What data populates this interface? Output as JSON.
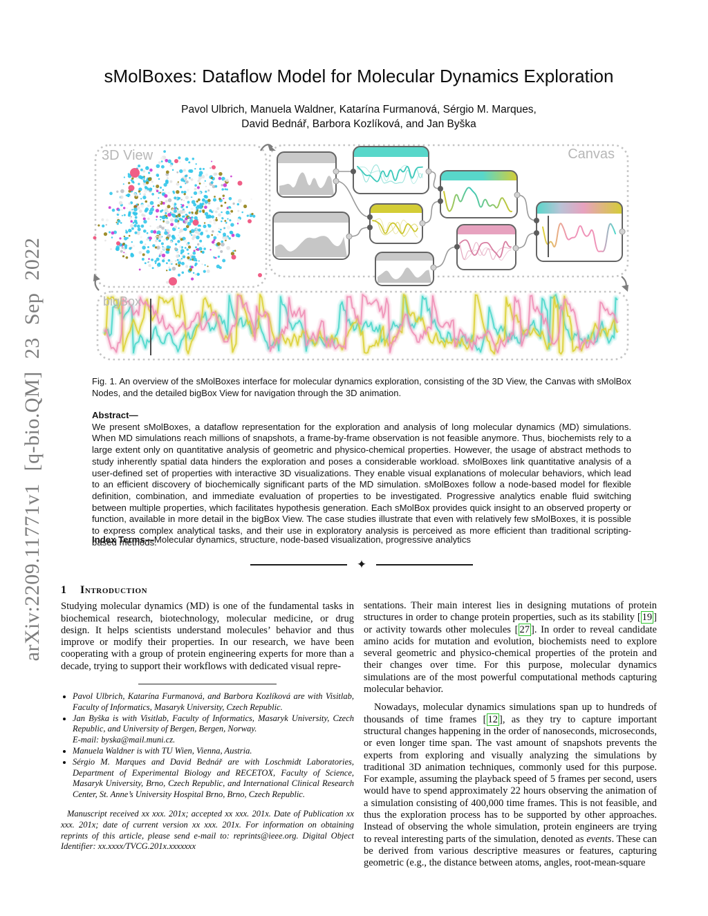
{
  "arxiv": {
    "text": "arXiv:2209.11771v1 [q-bio.QM] 23 Sep 2022"
  },
  "title": "sMolBoxes: Dataflow Model for Molecular Dynamics Exploration",
  "authors": {
    "line1": "Pavol Ulbrich, Manuela Waldner, Katarína Furmanová, Sérgio M. Marques,",
    "line2": "David Bednář, Barbora Kozlíková, and Jan Byška"
  },
  "figure": {
    "labels": {
      "view3d": "3D View",
      "canvas": "Canvas",
      "bigbox": "bigBox"
    },
    "colors": {
      "teal": "#58d7ca",
      "yellow": "#d4cd36",
      "pink": "#e7a2bf",
      "line_teal": "#3cc9bb",
      "line_yellow": "#cdc62e",
      "line_pink": "#d87fa2",
      "big_yellow": "#ddd23b",
      "big_pink": "#ef93b8",
      "big_cyan": "#4fd8cb",
      "gray_header": "#c9c9c9",
      "mountain": "#c6c6c6",
      "node_border": "#646464",
      "dash": "#c4c4c4",
      "edge": "#9a9a9a",
      "port_in": "#5c5c5c",
      "port_out": "#d2d2d2",
      "mol_cyan": "#2fc5e9",
      "mol_olive": "#917e10",
      "mol_magenta": "#c733cf",
      "mol_white": "#e4e4e4",
      "mol_gray": "#b9bec4",
      "crimson": "#ee4d79",
      "arrow": "#7d7d7d"
    }
  },
  "caption": "Fig. 1.  An overview of the sMolBoxes interface for molecular dynamics exploration, consisting of the 3D View, the Canvas with sMolBox Nodes, and the detailed bigBox View for navigation through the 3D animation.",
  "abstract": {
    "label": "Abstract—",
    "text": "We present sMolBoxes, a dataflow representation for the exploration and analysis of long molecular dynamics (MD) simulations. When MD simulations reach millions of snapshots, a frame-by-frame observation is not feasible anymore. Thus, biochemists rely to a large extent only on quantitative analysis of geometric and physico-chemical properties. However, the usage of abstract methods to study inherently spatial data hinders the exploration and poses a considerable workload. sMolBoxes link quantitative analysis of a user-defined set of properties with interactive 3D visualizations. They enable visual explanations of molecular behaviors, which lead to an efficient discovery of biochemically significant parts of the MD simulation. sMolBoxes follow a node-based model for flexible definition, combination, and immediate evaluation of properties to be investigated. Progressive analytics enable fluid switching between multiple properties, which facilitates hypothesis generation. Each sMolBox provides quick insight to an observed property or function, available in more detail in the bigBox View. The case studies illustrate that even with relatively few sMolBoxes, it is possible to express complex analytical tasks, and their use in exploratory analysis is perceived as more efficient than traditional scripting-based methods."
  },
  "index_terms": {
    "label": "Index Terms—",
    "text": "Molecular dynamics, structure, node-based visualization, progressive analytics"
  },
  "divider": {
    "symbol": "✦"
  },
  "intro": {
    "number": "1",
    "title": "Introduction",
    "left_paragraph": "Studying molecular dynamics (MD) is one of the fundamental tasks in biochemical research, biotechnology, molecular medicine, or drug design. It helps scientists understand molecules’ behavior and thus improve or modify their properties. In our research, we have been cooperating with a group of protein engineering experts for more than a decade, trying to support their workflows with dedicated visual repre-"
  },
  "footnotes": [
    {
      "text": "Pavol Ulbrich, Katarína Furmanová, and Barbora Kozlíková are with Visitlab, Faculty of Informatics, Masaryk University, Czech Republic.",
      "email": ""
    },
    {
      "text": "Jan Byška is with Visitlab, Faculty of Informatics, Masaryk University, Czech Republic, and University of Bergen, Bergen, Norway.",
      "email": "E-mail: byska@mail.muni.cz."
    },
    {
      "text": "Manuela Waldner is with TU Wien, Vienna, Austria.",
      "email": ""
    },
    {
      "text": "Sérgio M. Marques and David Bednář are with Loschmidt Laboratories, Department of Experimental Biology and RECETOX, Faculty of Science, Masaryk University, Brno, Czech Republic, and International Clinical Research Center, St. Anne’s University Hospital Brno, Brno, Czech Republic.",
      "email": ""
    }
  ],
  "manuscript": "Manuscript received xx xxx. 201x; accepted xx xxx. 201x. Date of Publication xx xxx. 201x; date of current version xx xxx. 201x. For information on obtaining reprints of this article, please send e-mail to: reprints@ieee.org. Digital Object Identifier: xx.xxxx/TVCG.201x.xxxxxxx",
  "right": {
    "p1": [
      {
        "t": "sentations. Their main interest lies in designing mutations of protein structures in order to change protein properties, such as its stability ["
      },
      {
        "t": "19",
        "cite": true
      },
      {
        "t": "] or activity towards other molecules ["
      },
      {
        "t": "27",
        "cite": true
      },
      {
        "t": "]. In order to reveal candidate amino acids for mutation and evolution, biochemists need to explore several geometric and physico-chemical properties of the protein and their changes over time. For this purpose, molecular dynamics simulations are of the most powerful computational methods capturing molecular behavior."
      }
    ],
    "p2": [
      {
        "t": "Nowadays, molecular dynamics simulations span up to hundreds of thousands of time frames ["
      },
      {
        "t": "12",
        "cite": true
      },
      {
        "t": "], as they try to capture important structural changes happening in the order of nanoseconds, microseconds, or even longer time span. The vast amount of snapshots prevents the experts from exploring and visually analyzing the simulations by traditional 3D animation techniques, commonly used for this purpose. For example, assuming the playback speed of 5 frames per second, users would have to spend approximately 22 hours observing the animation of a simulation consisting of 400,000 time frames. This is not feasible, and thus the exploration process has to be supported by other approaches. Instead of observing the whole simulation, protein engineers are trying to reveal interesting parts of the simulation, denoted as "
      },
      {
        "t": "events",
        "i": true
      },
      {
        "t": ". These can be derived from various descriptive measures or features, capturing geometric (e.g., the distance between atoms, angles, root-mean-square"
      }
    ]
  }
}
